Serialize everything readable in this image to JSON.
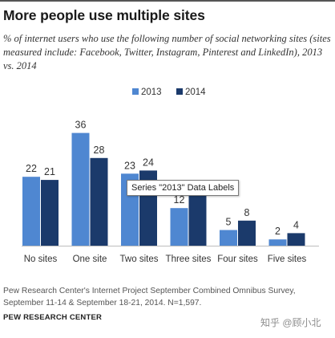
{
  "title": "More people use multiple sites",
  "subtitle": "% of internet users who use the following number of social networking sites (sites measured include: Facebook, Twitter, Instagram, Pinterest and LinkedIn), 2013 vs. 2014",
  "tooltip": "Series \"2013\" Data Labels",
  "note": "Pew Research Center's Internet Project September Combined Omnibus Survey, September 11-14 & September 18-21, 2014. N=1,597.",
  "source": "PEW RESEARCH CENTER",
  "watermark": "知乎 @顾小北",
  "colors": {
    "2013": "#4f87d1",
    "2014": "#1b3a6b"
  },
  "chart_data": {
    "type": "bar",
    "categories": [
      "No sites",
      "One site",
      "Two sites",
      "Three sites",
      "Four sites",
      "Five sites"
    ],
    "series": [
      {
        "name": "2013",
        "values": [
          22,
          36,
          23,
          12,
          5,
          2
        ]
      },
      {
        "name": "2014",
        "values": [
          21,
          28,
          24,
          16,
          8,
          4
        ]
      }
    ],
    "ylim": [
      0,
      40
    ],
    "grid": false,
    "legend": "top-right",
    "xlabel": "",
    "ylabel": ""
  }
}
